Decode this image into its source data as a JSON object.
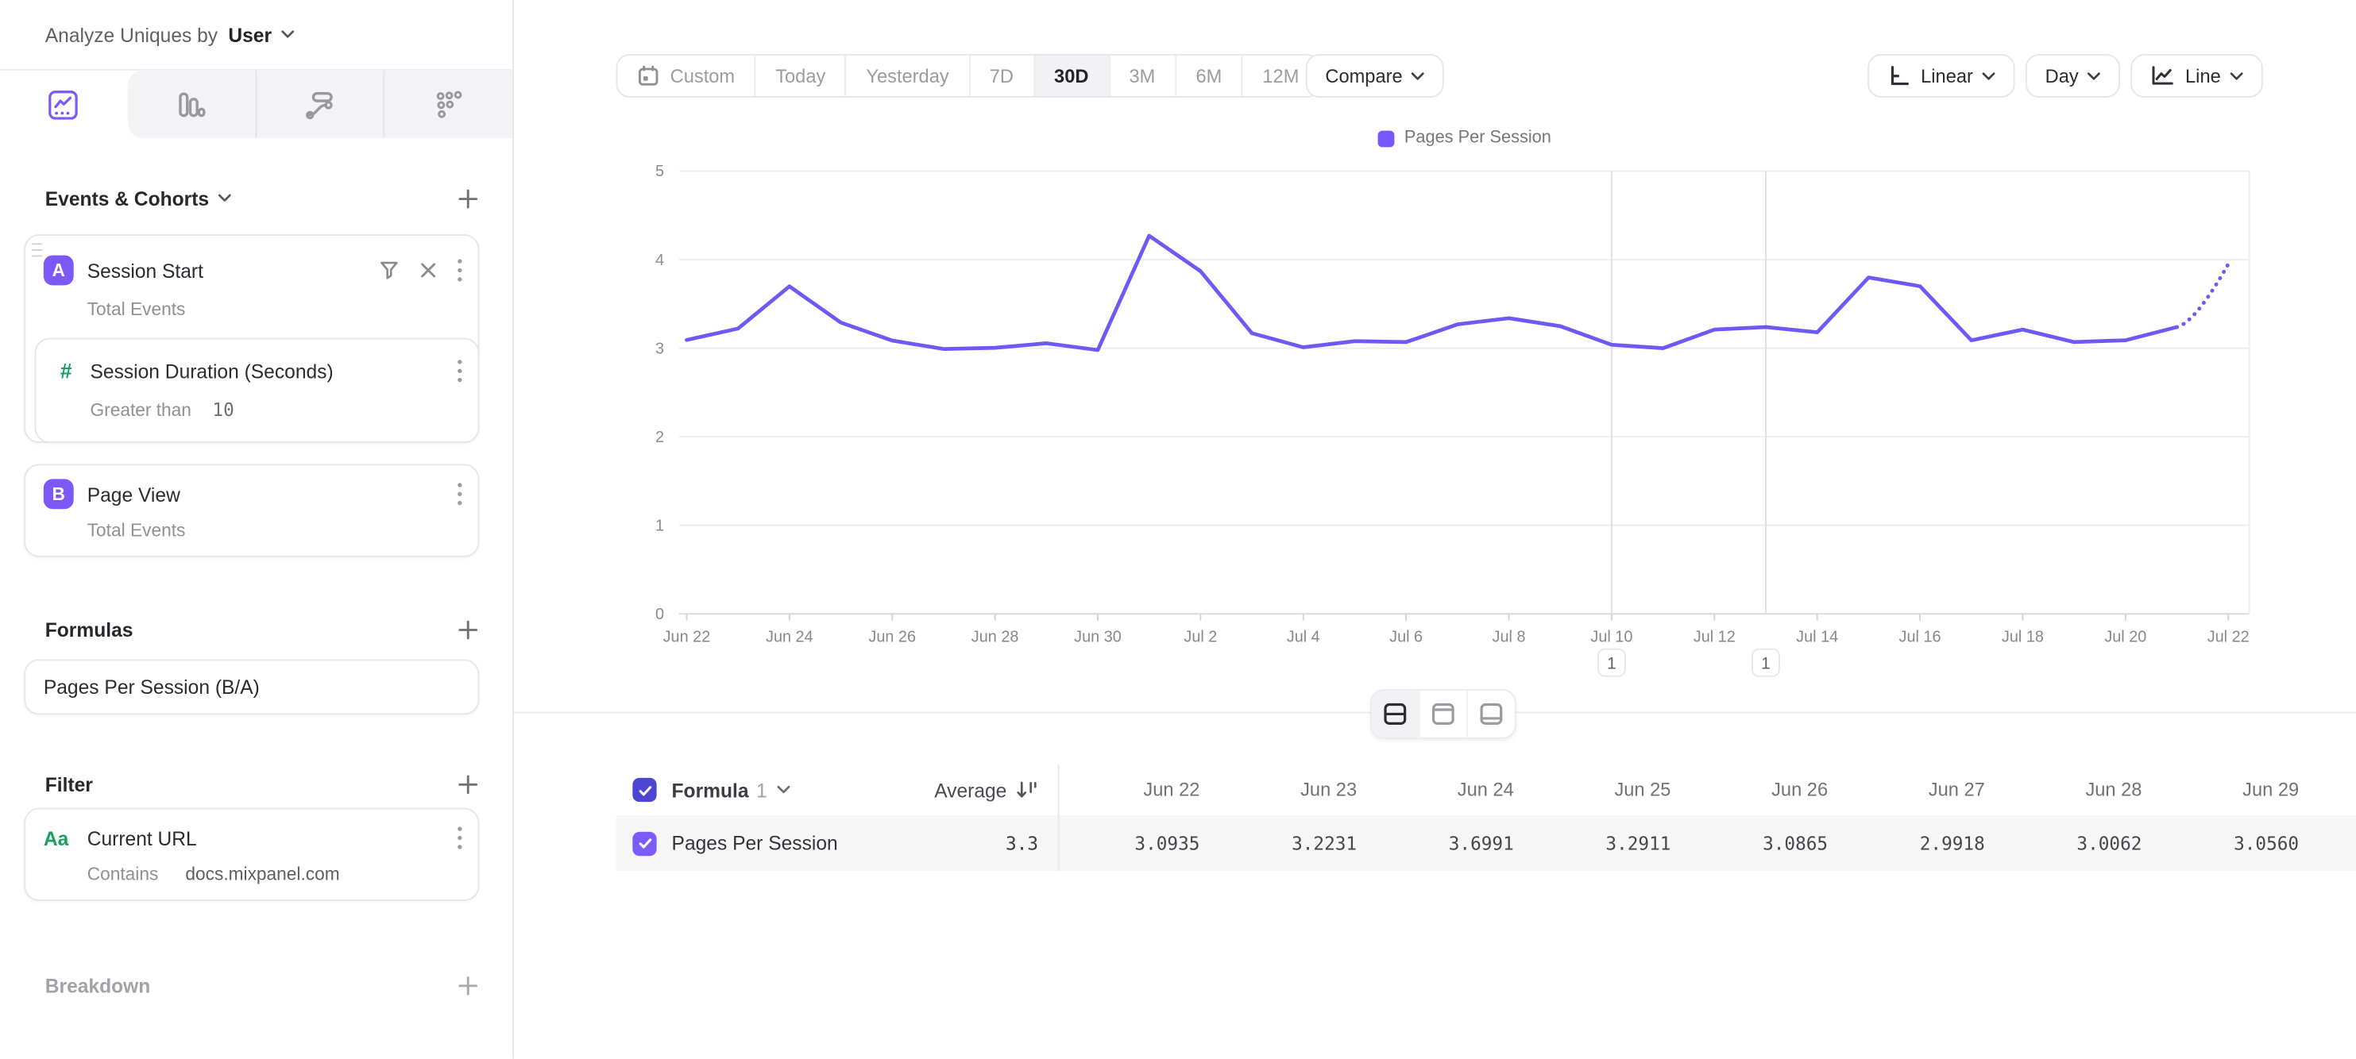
{
  "header": {
    "analyze_label": "Analyze Uniques by",
    "analyze_value": "User"
  },
  "sidebar": {
    "events_section": {
      "label": "Events & Cohorts"
    },
    "session_start": {
      "badge": "A",
      "title": "Session Start",
      "subtitle": "Total Events"
    },
    "session_duration": {
      "icon": "#",
      "title": "Session Duration (Seconds)",
      "operator": "Greater than",
      "value": "10"
    },
    "page_view": {
      "badge": "B",
      "title": "Page View",
      "subtitle": "Total Events"
    },
    "formulas_section": {
      "label": "Formulas"
    },
    "formula_card": {
      "title": "Pages Per Session (B/A)"
    },
    "filter_section": {
      "label": "Filter"
    },
    "filter_card": {
      "icon": "Aa",
      "title": "Current URL",
      "operator": "Contains",
      "value": "docs.mixpanel.com"
    },
    "breakdown_section": {
      "label": "Breakdown"
    }
  },
  "toolbar": {
    "date_ranges": [
      "Custom",
      "Today",
      "Yesterday",
      "7D",
      "30D",
      "3M",
      "6M",
      "12M"
    ],
    "selected_range": "30D",
    "compare_label": "Compare",
    "scale_label": "Linear",
    "interval_label": "Day",
    "chart_type_label": "Line"
  },
  "chart_data": {
    "type": "line",
    "title": "",
    "legend": [
      "Pages Per Session"
    ],
    "legend_position": "top",
    "grid": true,
    "ylim": [
      0,
      5
    ],
    "yticks": [
      0,
      1,
      2,
      3,
      4,
      5
    ],
    "x_dates": [
      "Jun 22",
      "Jun 23",
      "Jun 24",
      "Jun 25",
      "Jun 26",
      "Jun 27",
      "Jun 28",
      "Jun 29",
      "Jun 30",
      "Jul 1",
      "Jul 2",
      "Jul 3",
      "Jul 4",
      "Jul 5",
      "Jul 6",
      "Jul 7",
      "Jul 8",
      "Jul 9",
      "Jul 10",
      "Jul 11",
      "Jul 12",
      "Jul 13",
      "Jul 14",
      "Jul 15",
      "Jul 16",
      "Jul 17",
      "Jul 18",
      "Jul 19",
      "Jul 20",
      "Jul 21",
      "Jul 22"
    ],
    "xtick_labels": [
      "Jun 22",
      "Jun 24",
      "Jun 26",
      "Jun 28",
      "Jun 30",
      "Jul 2",
      "Jul 4",
      "Jul 6",
      "Jul 8",
      "Jul 10",
      "Jul 12",
      "Jul 14",
      "Jul 16",
      "Jul 18",
      "Jul 20",
      "Jul 22"
    ],
    "series": [
      {
        "name": "Pages Per Session",
        "color": "#6c59f6",
        "values": [
          3.0935,
          3.2231,
          3.6991,
          3.2911,
          3.0865,
          2.9918,
          3.0062,
          3.056,
          2.98,
          4.27,
          3.87,
          3.17,
          3.01,
          3.08,
          3.07,
          3.27,
          3.34,
          3.25,
          3.04,
          3.0,
          3.21,
          3.24,
          3.18,
          3.8,
          3.7,
          3.09,
          3.21,
          3.07,
          3.09,
          3.24,
          3.95
        ],
        "last_segment_projected": true
      }
    ],
    "annotations": [
      {
        "date": "Jul 10",
        "label": "1"
      },
      {
        "date": "Jul 13",
        "label": "1"
      }
    ]
  },
  "table": {
    "formula_label": "Formula",
    "formula_index": "1",
    "average_label": "Average",
    "columns": [
      "Jun 22",
      "Jun 23",
      "Jun 24",
      "Jun 25",
      "Jun 26",
      "Jun 27",
      "Jun 28",
      "Jun 29"
    ],
    "rows": [
      {
        "name": "Pages Per Session",
        "average": "3.3",
        "values": [
          "3.0935",
          "3.2231",
          "3.6991",
          "3.2911",
          "3.0865",
          "2.9918",
          "3.0062",
          "3.0560"
        ]
      }
    ]
  }
}
